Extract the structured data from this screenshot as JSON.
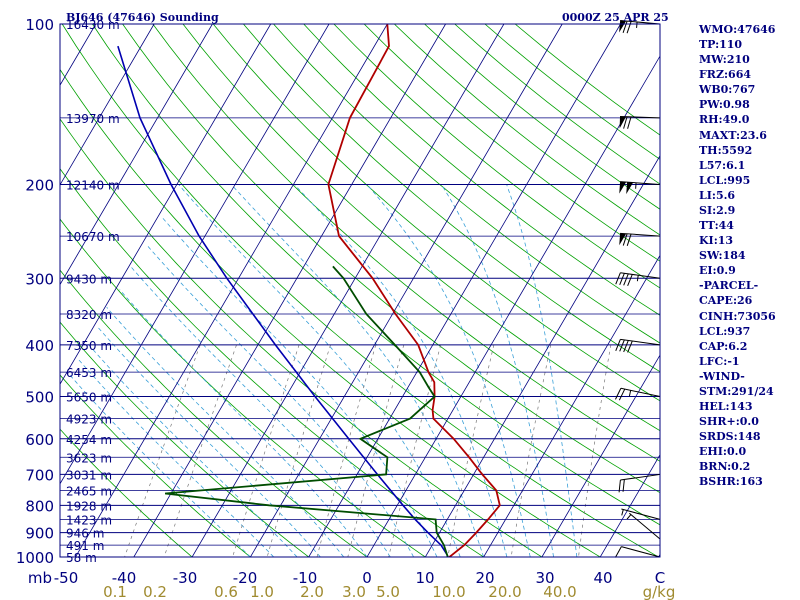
{
  "station_title": "BJ646 (47646) Sounding",
  "valid_time": "0000Z 25 APR 25",
  "indices": [
    "WMO:47646",
    "TP:110",
    "MW:210",
    "FRZ:664",
    "WB0:767",
    "PW:0.98",
    "RH:49.0",
    "MAXT:23.6",
    "TH:5592",
    "L57:6.1",
    "LCL:995",
    "LI:5.6",
    "SI:2.9",
    "TT:44",
    "KI:13",
    "SW:184",
    "EI:0.9",
    "-PARCEL-",
    "CAPE:26",
    "CINH:73056",
    "LCL:937",
    "CAP:6.2",
    "LFC:-1",
    "-WIND-",
    "STM:291/24",
    "HEL:143",
    "SHR+:0.0",
    "SRDS:148",
    "EHI:0.0",
    "BRN:0.2",
    "BSHR:163"
  ],
  "chart_data": {
    "type": "skew-t",
    "pressure_axis_unit": "mb",
    "temperature_axis_unit": "C",
    "mixing_ratio_unit": "g/kg",
    "pressure_ticks": [
      {
        "p": 100,
        "label": "100"
      },
      {
        "p": 200,
        "label": "200"
      },
      {
        "p": 300,
        "label": "300"
      },
      {
        "p": 400,
        "label": "400"
      },
      {
        "p": 500,
        "label": "500"
      },
      {
        "p": 600,
        "label": "600"
      },
      {
        "p": 700,
        "label": "700"
      },
      {
        "p": 800,
        "label": "800"
      },
      {
        "p": 900,
        "label": "900"
      },
      {
        "p": 1000,
        "label": "1000"
      }
    ],
    "temperature_ticks": [
      "-50",
      "-40",
      "-30",
      "-20",
      "-10",
      "0",
      "10",
      "20",
      "30",
      "40",
      "C"
    ],
    "mixing_ratio_ticks": [
      "0.1",
      "0.2",
      "0.6",
      "1.0",
      "2.0",
      "3.0",
      "5.0",
      "10.0",
      "20.0",
      "40.0",
      "g/kg"
    ],
    "height_levels": [
      {
        "p": 100,
        "label": "16430 m"
      },
      {
        "p": 150,
        "label": "13970 m"
      },
      {
        "p": 200,
        "label": "12140 m"
      },
      {
        "p": 250,
        "label": "10670 m"
      },
      {
        "p": 300,
        "label": "9430 m"
      },
      {
        "p": 350,
        "label": "8320 m"
      },
      {
        "p": 400,
        "label": "7350 m"
      },
      {
        "p": 450,
        "label": "6453 m"
      },
      {
        "p": 500,
        "label": "5650 m"
      },
      {
        "p": 550,
        "label": "4923 m"
      },
      {
        "p": 600,
        "label": "4254 m"
      },
      {
        "p": 650,
        "label": "3623 m"
      },
      {
        "p": 700,
        "label": "3031 m"
      },
      {
        "p": 750,
        "label": "2465 m"
      },
      {
        "p": 800,
        "label": "1928 m"
      },
      {
        "p": 850,
        "label": "1423 m"
      },
      {
        "p": 900,
        "label": "946 m"
      },
      {
        "p": 950,
        "label": "491 m"
      },
      {
        "p": 1000,
        "label": "58 m"
      }
    ],
    "temperature_profile": [
      [
        1004,
        14.0
      ],
      [
        990,
        14.4
      ],
      [
        950,
        15.5
      ],
      [
        900,
        16.3
      ],
      [
        850,
        17.0
      ],
      [
        800,
        17.6
      ],
      [
        750,
        15.5
      ],
      [
        700,
        11.5
      ],
      [
        650,
        7.5
      ],
      [
        600,
        3.0
      ],
      [
        550,
        -2.5
      ],
      [
        530,
        -3.5
      ],
      [
        500,
        -4.5
      ],
      [
        470,
        -6.0
      ],
      [
        450,
        -8.0
      ],
      [
        400,
        -12.5
      ],
      [
        350,
        -19.5
      ],
      [
        300,
        -27.0
      ],
      [
        250,
        -37.0
      ],
      [
        200,
        -44.0
      ],
      [
        150,
        -47.0
      ],
      [
        110,
        -47.5
      ],
      [
        100,
        -50.0
      ]
    ],
    "dewpoint_profile": [
      [
        1004,
        14.0
      ],
      [
        950,
        12.0
      ],
      [
        900,
        9.5
      ],
      [
        850,
        8.0
      ],
      [
        800,
        -22.0
      ],
      [
        760,
        -41.0
      ],
      [
        700,
        -5.0
      ],
      [
        650,
        -6.5
      ],
      [
        600,
        -13.0
      ],
      [
        550,
        -6.5
      ],
      [
        500,
        -4.5
      ],
      [
        480,
        -6.5
      ],
      [
        450,
        -9.5
      ],
      [
        400,
        -16.5
      ],
      [
        350,
        -24.5
      ],
      [
        300,
        -32.0
      ],
      [
        285,
        -35.0
      ]
    ],
    "parcel_profile": [
      [
        1004,
        14.0
      ],
      [
        990,
        13.5
      ],
      [
        950,
        11.5
      ],
      [
        900,
        8.0
      ],
      [
        850,
        4.5
      ],
      [
        800,
        1.0
      ],
      [
        700,
        -6.5
      ],
      [
        600,
        -15.0
      ],
      [
        500,
        -25.0
      ],
      [
        400,
        -37.0
      ],
      [
        300,
        -52.0
      ],
      [
        250,
        -61.0
      ],
      [
        200,
        -71.0
      ],
      [
        150,
        -83.0
      ],
      [
        110,
        -94.0
      ]
    ],
    "wind_barbs": [
      {
        "p": 100,
        "dir": 265,
        "spd": 75
      },
      {
        "p": 150,
        "dir": 268,
        "spd": 70
      },
      {
        "p": 200,
        "dir": 266,
        "spd": 105
      },
      {
        "p": 250,
        "dir": 266,
        "spd": 70
      },
      {
        "p": 300,
        "dir": 262,
        "spd": 45
      },
      {
        "p": 400,
        "dir": 262,
        "spd": 40
      },
      {
        "p": 500,
        "dir": 258,
        "spd": 25
      },
      {
        "p": 700,
        "dir": 278,
        "spd": 20
      },
      {
        "p": 850,
        "dir": 255,
        "spd": 5
      },
      {
        "p": 925,
        "dir": 230,
        "spd": 5
      },
      {
        "p": 1000,
        "dir": 255,
        "spd": 10
      }
    ],
    "colors": {
      "temperature": "#b00000",
      "dewpoint": "#004d00",
      "parcel": "#0000b0",
      "isobar": "#00007f",
      "isotherm": "#00007f",
      "dry_adiabat": "#00a000",
      "moist_adiabat": "#3aa0d8",
      "mixing_ratio": "#777777"
    }
  }
}
